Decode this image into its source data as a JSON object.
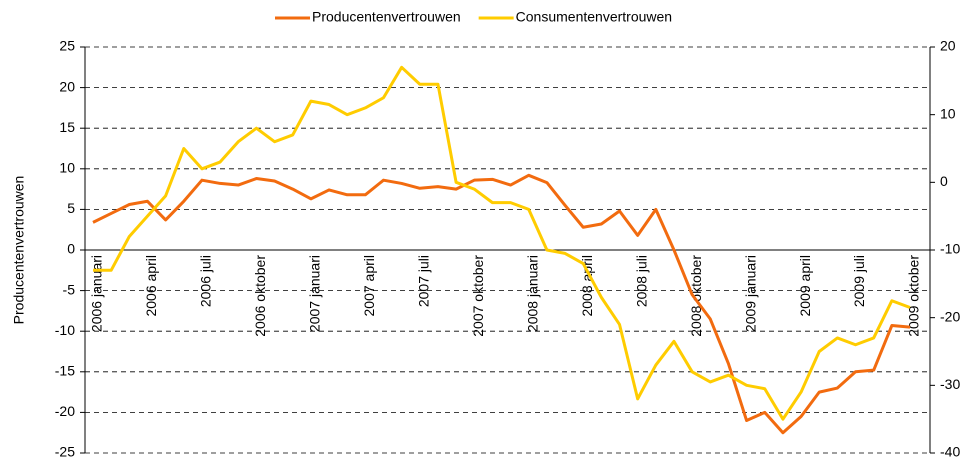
{
  "chart_data": {
    "type": "line",
    "legend_position": "top",
    "ylabel": "Producentenvertrouwen",
    "categories": [
      "2006 januari",
      null,
      null,
      "2006 april",
      null,
      null,
      "2006 juli",
      null,
      null,
      "2006 oktober",
      null,
      null,
      "2007 januari",
      null,
      null,
      "2007 april",
      null,
      null,
      "2007 juli",
      null,
      null,
      "2007 oktober",
      null,
      null,
      "2008 januari",
      null,
      null,
      "2008 april",
      null,
      null,
      "2008 juli",
      null,
      null,
      "2008 oktober",
      null,
      null,
      "2009 januari",
      null,
      null,
      "2009 april",
      null,
      null,
      "2009 juli",
      null,
      null,
      "2009 oktober"
    ],
    "series": [
      {
        "name": "Producentenvertrouwen",
        "color": "#f26b0f",
        "values": [
          3.4,
          4.5,
          5.6,
          6.0,
          3.7,
          6.0,
          8.6,
          8.2,
          8.0,
          8.8,
          8.5,
          7.5,
          6.3,
          7.4,
          6.8,
          6.8,
          8.6,
          8.2,
          7.6,
          7.8,
          7.5,
          8.6,
          8.7,
          8.0,
          9.2,
          8.3,
          5.5,
          2.8,
          3.2,
          4.8,
          1.8,
          5.0,
          0.0,
          -5.5,
          -8.5,
          -14,
          -21,
          -20,
          -22.5,
          -20.5,
          -17.5,
          -17,
          -15,
          -14.8,
          -9.3,
          -9.5
        ]
      },
      {
        "name": "Consumentenvertrouwen",
        "color": "#ffcc00",
        "axis": "y2",
        "values": [
          -13,
          -13,
          -8,
          -5,
          -2,
          5,
          2,
          3,
          6,
          8,
          6,
          7,
          12,
          11.5,
          10,
          11,
          12.5,
          17,
          14.5,
          14.5,
          0,
          -1,
          -3,
          -3,
          -4,
          -10,
          -10.5,
          -12,
          -17,
          -21,
          -32,
          -27,
          -23.5,
          -28,
          -29.5,
          -28.5,
          -30,
          -30.5,
          -35,
          -31,
          -25,
          -23,
          -24,
          -23,
          -17.5,
          -18.5
        ]
      }
    ],
    "ylim": [
      -25,
      25
    ],
    "yticks": [
      -25,
      -20,
      -15,
      -10,
      -5,
      0,
      5,
      10,
      15,
      20,
      25
    ],
    "y2lim": [
      -40,
      20
    ],
    "y2ticks": [
      -40,
      -30,
      -20,
      -10,
      0,
      10,
      20
    ],
    "grid": true
  }
}
